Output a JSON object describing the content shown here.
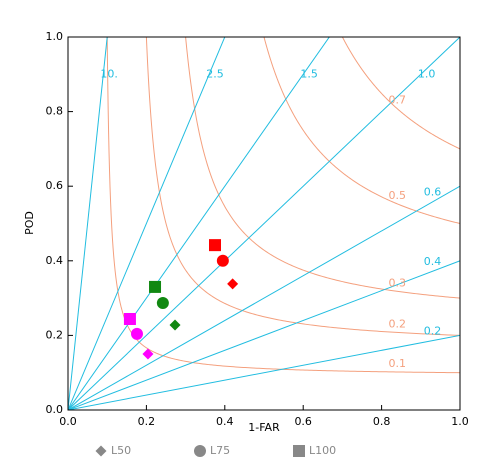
{
  "chart_data": {
    "type": "performance",
    "xlabel": "1-FAR",
    "ylabel": "POD",
    "xlim": [
      0,
      1
    ],
    "ylim": [
      0,
      1
    ],
    "xticks": [
      {
        "value": 0,
        "label": "0.0"
      },
      0.2,
      0.4,
      0.6,
      0.8,
      {
        "value": 1,
        "label": "1.0"
      }
    ],
    "yticks": [
      {
        "value": 0,
        "label": "0.0"
      },
      0.2,
      0.4,
      0.6,
      0.8,
      {
        "value": 1,
        "label": "1.0"
      }
    ],
    "bias_lines": [
      {
        "value": 10,
        "label": "10."
      },
      {
        "value": 2.5,
        "label": "2.5"
      },
      {
        "value": 1.5,
        "label": "1.5"
      },
      {
        "value": 1,
        "label": "1.0"
      },
      0.6,
      0.4,
      0.2
    ],
    "bias_color": "#22bde0",
    "csi_lines": [
      0.1,
      0.2,
      0.3,
      0.5,
      0.7
    ],
    "csi_color": "#f4a07e",
    "legend": [
      {
        "label": "L50",
        "marker": "diamond"
      },
      {
        "label": "L75",
        "marker": "circle"
      },
      {
        "label": "L100",
        "marker": "square"
      }
    ],
    "legend_color": "#888888",
    "series": [
      {
        "color": "#ff0000",
        "x": [
          0.42,
          0.395,
          0.375
        ],
        "values": [
          0.338,
          0.4,
          0.442
        ]
      },
      {
        "color": "#118811",
        "x": [
          0.273,
          0.242,
          0.222
        ],
        "values": [
          0.228,
          0.287,
          0.33
        ]
      },
      {
        "color": "#ff00ff",
        "x": [
          0.204,
          0.176,
          0.158
        ],
        "values": [
          0.15,
          0.204,
          0.244
        ]
      }
    ]
  }
}
